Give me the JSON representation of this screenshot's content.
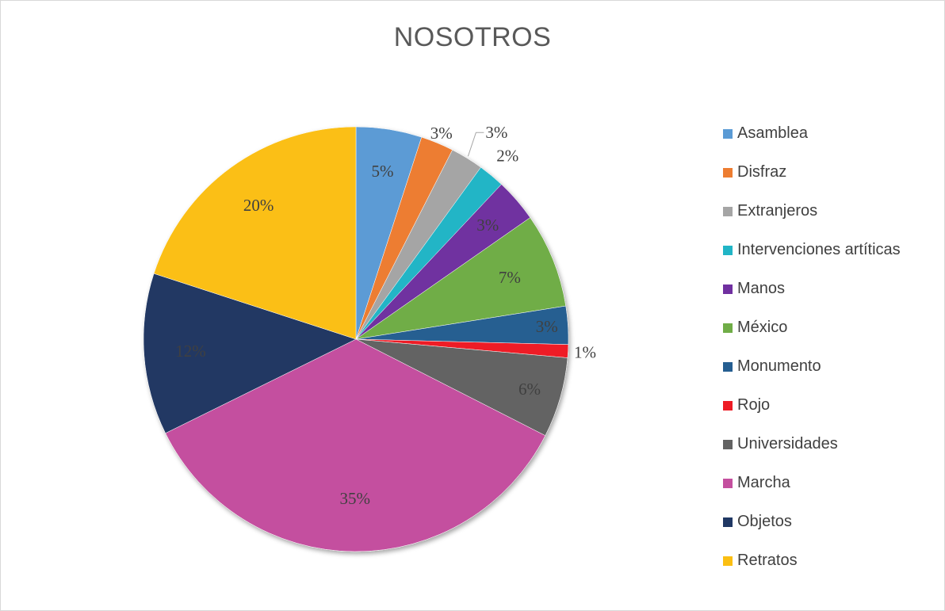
{
  "chart_data": {
    "type": "pie",
    "title": "NOSOTROS",
    "legend_position": "right",
    "slices": [
      {
        "name": "Asamblea",
        "value": 5,
        "label": "5%",
        "color": "#5b9bd5"
      },
      {
        "name": "Disfraz",
        "value": 2.5,
        "label": "3%",
        "color": "#ed7d31"
      },
      {
        "name": "Extranjeros",
        "value": 2.5,
        "label": "3%",
        "color": "#a5a5a5"
      },
      {
        "name": "Intervenciones artíticas",
        "value": 2,
        "label": "2%",
        "color": "#21b5c6"
      },
      {
        "name": "Manos",
        "value": 3.3,
        "label": "3%",
        "color": "#7030a0"
      },
      {
        "name": "México",
        "value": 7.2,
        "label": "7%",
        "color": "#70ad47"
      },
      {
        "name": "Monumento",
        "value": 2.9,
        "label": "3%",
        "color": "#255e91"
      },
      {
        "name": "Rojo",
        "value": 1,
        "label": "1%",
        "color": "#ee1c25"
      },
      {
        "name": "Universidades",
        "value": 6.1,
        "label": "6%",
        "color": "#636363"
      },
      {
        "name": "Marcha",
        "value": 35.2,
        "label": "35%",
        "color": "#c4509f"
      },
      {
        "name": "Objetos",
        "value": 12.3,
        "label": "12%",
        "color": "#203864"
      },
      {
        "name": "Retratos",
        "value": 20,
        "label": "20%",
        "color": "#fbbf12"
      }
    ]
  }
}
